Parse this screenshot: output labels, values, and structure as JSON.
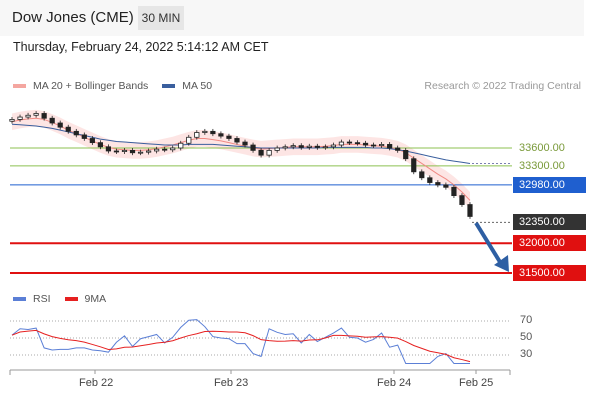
{
  "header": {
    "title": "Dow Jones (CME)",
    "timeframe": "30 MIN"
  },
  "datetime": "Thursday, February 24, 2022 5:14:12 AM CET",
  "credit": "Research © 2022 Trading Central",
  "legend_top": [
    {
      "label": "MA 20 + Bollinger Bands",
      "color": "#f4a6a0"
    },
    {
      "label": "MA 50",
      "color": "#3a5f9e"
    }
  ],
  "legend_bottom": [
    {
      "label": "RSI",
      "color": "#5b7fd6"
    },
    {
      "label": "9MA",
      "color": "#e62020"
    }
  ],
  "chart_data": [
    {
      "type": "candlestick",
      "x_ticks": [
        "Feb 22",
        "Feb 23",
        "Feb 24",
        "Feb 25"
      ],
      "levels": [
        {
          "value": 33600.0,
          "label": "33600.00",
          "color": "#8cc050",
          "style": "plain"
        },
        {
          "value": 33300.0,
          "label": "33300.00",
          "color": "#8cc050",
          "style": "plain"
        },
        {
          "value": 32980.0,
          "label": "32980.00",
          "color": "#1f5fcf",
          "style": "tag"
        },
        {
          "value": 32350.0,
          "label": "32350.00",
          "color": "#333333",
          "style": "tag-current"
        },
        {
          "value": 32000.0,
          "label": "32000.00",
          "color": "#e01010",
          "style": "tag"
        },
        {
          "value": 31500.0,
          "label": "31500.00",
          "color": "#e01010",
          "style": "tag"
        }
      ],
      "close_series": [
        34080,
        34120,
        34150,
        34180,
        34100,
        34020,
        33950,
        33880,
        33820,
        33760,
        33690,
        33620,
        33550,
        33540,
        33560,
        33520,
        33530,
        33550,
        33580,
        33570,
        33600,
        33680,
        33780,
        33860,
        33880,
        33840,
        33800,
        33760,
        33700,
        33650,
        33560,
        33480,
        33560,
        33600,
        33620,
        33640,
        33610,
        33630,
        33610,
        33620,
        33650,
        33700,
        33690,
        33680,
        33650,
        33640,
        33660,
        33600,
        33560,
        33420,
        33200,
        33100,
        33020,
        32980,
        32940,
        32800,
        32650,
        32450
      ],
      "ma20": [
        34040,
        34070,
        34090,
        34100,
        34080,
        34030,
        33970,
        33900,
        33840,
        33780,
        33720,
        33660,
        33610,
        33580,
        33570,
        33560,
        33560,
        33570,
        33590,
        33620,
        33650,
        33690,
        33730,
        33760,
        33760,
        33740,
        33720,
        33690,
        33660,
        33630,
        33600,
        33580,
        33590,
        33600,
        33610,
        33620,
        33620,
        33620,
        33620,
        33630,
        33640,
        33660,
        33660,
        33660,
        33650,
        33640,
        33630,
        33610,
        33580,
        33520,
        33430,
        33340,
        33250,
        33160,
        33080,
        32980,
        32860,
        32720
      ],
      "ma50": [
        34000,
        33990,
        33980,
        33970,
        33950,
        33930,
        33900,
        33870,
        33840,
        33810,
        33780,
        33750,
        33730,
        33710,
        33700,
        33690,
        33680,
        33670,
        33660,
        33650,
        33650,
        33650,
        33660,
        33660,
        33660,
        33660,
        33650,
        33640,
        33630,
        33620,
        33610,
        33600,
        33600,
        33600,
        33600,
        33600,
        33600,
        33600,
        33600,
        33610,
        33610,
        33610,
        33610,
        33610,
        33610,
        33600,
        33600,
        33590,
        33570,
        33550,
        33520,
        33490,
        33460,
        33430,
        33400,
        33380,
        33360,
        33340
      ],
      "rsi_levels": [
        "70",
        "50",
        "30"
      ]
    }
  ]
}
